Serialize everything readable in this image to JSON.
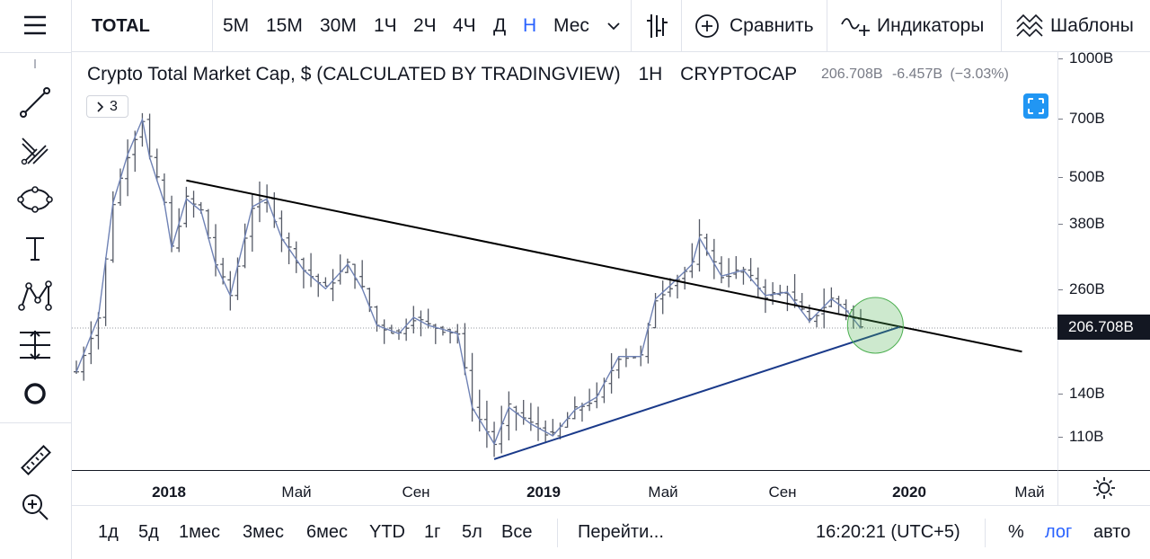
{
  "top_toolbar": {
    "symbol": "TOTAL",
    "intervals": [
      "5M",
      "15M",
      "30M",
      "1Ч",
      "2Ч",
      "4Ч",
      "Д",
      "Н",
      "Мес"
    ],
    "active_interval": "Н",
    "compare_label": "Сравнить",
    "indicators_label": "Индикаторы",
    "templates_label": "Шаблоны"
  },
  "left_toolbar": {
    "tools": [
      "menu-icon",
      "trend-line-icon",
      "pitchfork-icon",
      "ellipse-icon",
      "text-icon",
      "pattern-icon",
      "measure-icon",
      "circle-icon",
      "ruler-icon",
      "zoom-in-icon"
    ]
  },
  "legend": {
    "title": "Crypto Total Market Cap, $ (CALCULATED BY TRADINGVIEW)",
    "interval": "1Н",
    "exchange": "CRYPTOCAP",
    "price": "206.708B",
    "change": "-6.457B",
    "change_pct": "(−3.03%)",
    "indicators_count": "3"
  },
  "price_axis": {
    "ticks": [
      "1000B",
      "700B",
      "500B",
      "380B",
      "260B",
      "140B",
      "110B"
    ],
    "current_price": "206.708B"
  },
  "time_axis": {
    "ticks": [
      {
        "label": "2018",
        "bold": true
      },
      {
        "label": "Май",
        "bold": false
      },
      {
        "label": "Сен",
        "bold": false
      },
      {
        "label": "2019",
        "bold": true
      },
      {
        "label": "Май",
        "bold": false
      },
      {
        "label": "Сен",
        "bold": false
      },
      {
        "label": "2020",
        "bold": true
      },
      {
        "label": "Май",
        "bold": false
      }
    ]
  },
  "bottom_bar": {
    "ranges": [
      "1д",
      "5д",
      "1мес",
      "3мес",
      "6мес",
      "YTD",
      "1г",
      "5л",
      "Все"
    ],
    "goto_label": "Перейти...",
    "time": "16:20:21 (UTC+5)",
    "percent_label": "%",
    "log_label": "лог",
    "auto_label": "авто"
  },
  "colors": {
    "accent": "#2962ff",
    "candles": "#555a66",
    "ma_line": "#6f82b5",
    "resistance_line": "#000000",
    "support_line": "#1a3a8a",
    "highlight_circle": "#4caf50"
  },
  "chart_data": {
    "type": "bar",
    "scale": "log",
    "x_range": [
      "2017-11",
      "2020-06"
    ],
    "y_range": [
      95,
      1080
    ],
    "close_series": [
      {
        "date": "2017-11-06",
        "close": 160
      },
      {
        "date": "2017-11-27",
        "close": 220
      },
      {
        "date": "2017-12-11",
        "close": 430
      },
      {
        "date": "2017-12-25",
        "close": 570
      },
      {
        "date": "2018-01-08",
        "close": 700
      },
      {
        "date": "2018-01-15",
        "close": 560
      },
      {
        "date": "2018-01-29",
        "close": 430
      },
      {
        "date": "2018-02-05",
        "close": 330
      },
      {
        "date": "2018-02-19",
        "close": 440
      },
      {
        "date": "2018-03-05",
        "close": 410
      },
      {
        "date": "2018-03-19",
        "close": 300
      },
      {
        "date": "2018-04-02",
        "close": 250
      },
      {
        "date": "2018-04-23",
        "close": 420
      },
      {
        "date": "2018-05-07",
        "close": 440
      },
      {
        "date": "2018-05-21",
        "close": 350
      },
      {
        "date": "2018-06-11",
        "close": 290
      },
      {
        "date": "2018-07-02",
        "close": 260
      },
      {
        "date": "2018-07-23",
        "close": 300
      },
      {
        "date": "2018-08-06",
        "close": 260
      },
      {
        "date": "2018-08-20",
        "close": 210
      },
      {
        "date": "2018-09-10",
        "close": 200
      },
      {
        "date": "2018-09-24",
        "close": 220
      },
      {
        "date": "2018-10-08",
        "close": 210
      },
      {
        "date": "2018-10-22",
        "close": 205
      },
      {
        "date": "2018-11-05",
        "close": 200
      },
      {
        "date": "2018-11-19",
        "close": 130
      },
      {
        "date": "2018-12-10",
        "close": 105
      },
      {
        "date": "2018-12-24",
        "close": 130
      },
      {
        "date": "2019-01-14",
        "close": 118
      },
      {
        "date": "2019-02-04",
        "close": 110
      },
      {
        "date": "2019-02-25",
        "close": 128
      },
      {
        "date": "2019-03-18",
        "close": 138
      },
      {
        "date": "2019-04-08",
        "close": 175
      },
      {
        "date": "2019-04-29",
        "close": 175
      },
      {
        "date": "2019-05-13",
        "close": 245
      },
      {
        "date": "2019-05-27",
        "close": 265
      },
      {
        "date": "2019-06-17",
        "close": 300
      },
      {
        "date": "2019-06-24",
        "close": 350
      },
      {
        "date": "2019-07-15",
        "close": 280
      },
      {
        "date": "2019-08-05",
        "close": 290
      },
      {
        "date": "2019-08-26",
        "close": 250
      },
      {
        "date": "2019-09-16",
        "close": 255
      },
      {
        "date": "2019-10-07",
        "close": 215
      },
      {
        "date": "2019-10-28",
        "close": 245
      },
      {
        "date": "2019-11-11",
        "close": 230
      },
      {
        "date": "2019-11-25",
        "close": 206.708
      }
    ],
    "trendlines": [
      {
        "name": "resistance",
        "from": {
          "date": "2018-02-19",
          "value": 490
        },
        "to": {
          "date": "2020-04-27",
          "value": 180
        }
      },
      {
        "name": "support",
        "from": {
          "date": "2018-12-10",
          "value": 96
        },
        "to": {
          "date": "2020-01-01",
          "value": 208
        }
      }
    ],
    "highlight": {
      "date": "2019-12-09",
      "value": 210
    }
  }
}
